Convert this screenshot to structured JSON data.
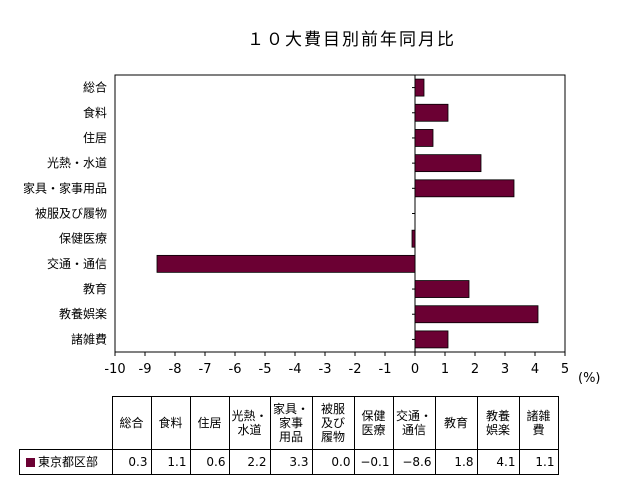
{
  "title": "１０大費目別前年同月比",
  "unit": "(%)",
  "colors": {
    "bar": "#6b0033",
    "axis": "#000000",
    "frame": "#000000"
  },
  "chart_data": {
    "type": "bar",
    "orientation": "horizontal",
    "title": "１０大費目別前年同月比",
    "categories": [
      "総合",
      "食料",
      "住居",
      "光熱・水道",
      "家具・家事用品",
      "被服及び履物",
      "保健医療",
      "交通・通信",
      "教育",
      "教養娯楽",
      "諸雑費"
    ],
    "series": [
      {
        "name": "東京都区部",
        "values": [
          0.3,
          1.1,
          0.6,
          2.2,
          3.3,
          0.0,
          -0.1,
          -8.6,
          1.8,
          4.1,
          1.1
        ]
      }
    ],
    "xlim": [
      -10,
      5
    ],
    "xticks": [
      -10,
      -9,
      -8,
      -7,
      -6,
      -5,
      -4,
      -3,
      -2,
      -1,
      0,
      1,
      2,
      3,
      4,
      5
    ],
    "xlabel": "(%)",
    "grid": false
  },
  "table": {
    "headers": [
      [
        "総合"
      ],
      [
        "食料"
      ],
      [
        "住居"
      ],
      [
        "光熱・",
        "水道"
      ],
      [
        "家具・",
        "家事",
        "用品"
      ],
      [
        "被服",
        "及び",
        "履物"
      ],
      [
        "保健",
        "医療"
      ],
      [
        "交通・",
        "通信"
      ],
      [
        "教育"
      ],
      [
        "教養",
        "娯楽"
      ],
      [
        "諸雑",
        "費"
      ]
    ],
    "row_label": "東京都区部",
    "values": [
      "0.3",
      "1.1",
      "0.6",
      "2.2",
      "3.3",
      "0.0",
      "−0.1",
      "−8.6",
      "1.8",
      "4.1",
      "1.1"
    ]
  }
}
